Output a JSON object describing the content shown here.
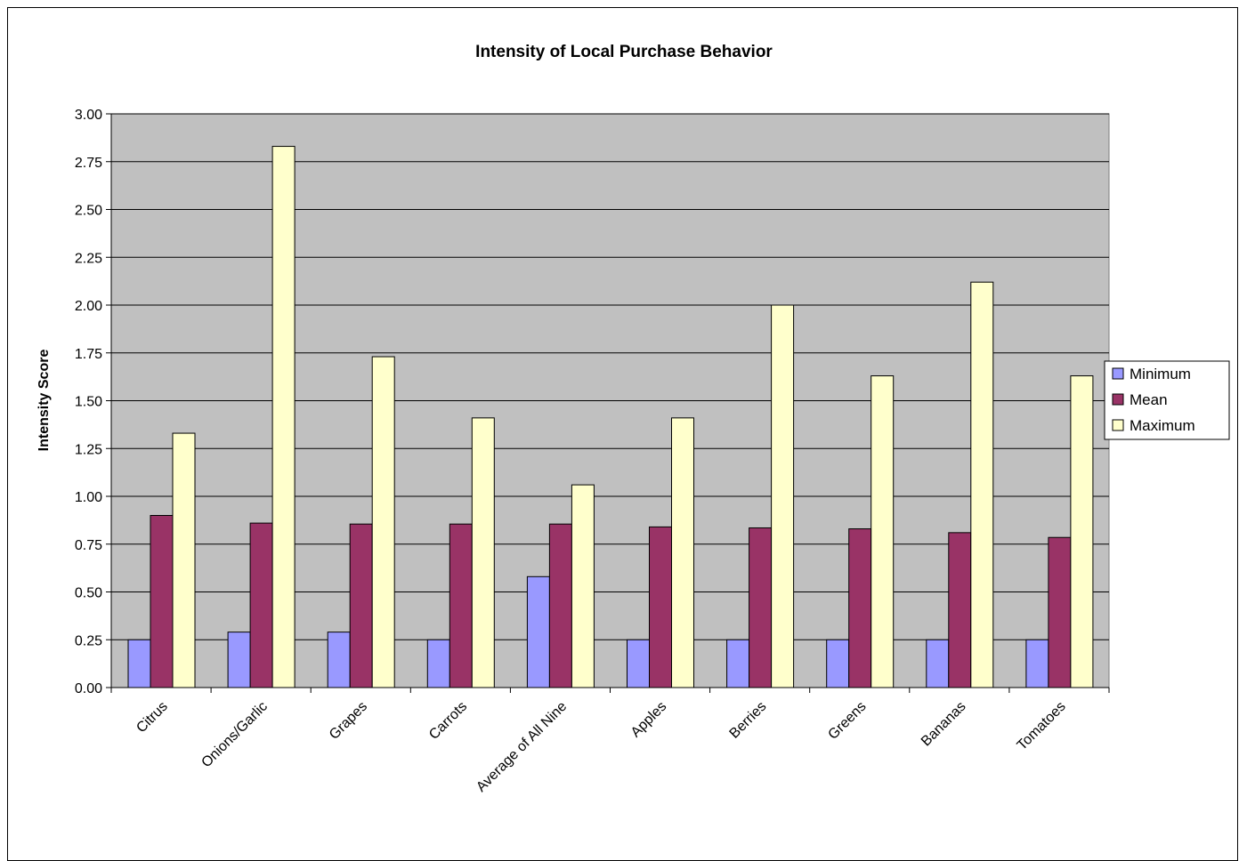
{
  "chart_data": {
    "type": "bar",
    "title": "Intensity of Local Purchase Behavior",
    "xlabel": "",
    "ylabel": "Intensity Score",
    "ylim": [
      0,
      3.0
    ],
    "yticks": [
      "0.00",
      "0.25",
      "0.50",
      "0.75",
      "1.00",
      "1.25",
      "1.50",
      "1.75",
      "2.00",
      "2.25",
      "2.50",
      "2.75",
      "3.00"
    ],
    "categories": [
      "Citrus",
      "Onions/Garlic",
      "Grapes",
      "Carrots",
      "Average of All Nine",
      "Apples",
      "Berries",
      "Greens",
      "Bananas",
      "Tomatoes"
    ],
    "series": [
      {
        "name": "Minimum",
        "color": "#9999FF",
        "values": [
          0.25,
          0.29,
          0.29,
          0.25,
          0.58,
          0.25,
          0.25,
          0.25,
          0.25,
          0.25
        ]
      },
      {
        "name": "Mean",
        "color": "#993366",
        "values": [
          0.9,
          0.86,
          0.855,
          0.855,
          0.855,
          0.84,
          0.835,
          0.83,
          0.81,
          0.785
        ]
      },
      {
        "name": "Maximum",
        "color": "#FFFFCC",
        "values": [
          1.33,
          2.83,
          1.73,
          1.41,
          1.06,
          1.41,
          2.0,
          1.63,
          2.12,
          1.63
        ]
      }
    ],
    "grid": true,
    "plot_background": "#C0C0C0",
    "legend_position": "right"
  }
}
